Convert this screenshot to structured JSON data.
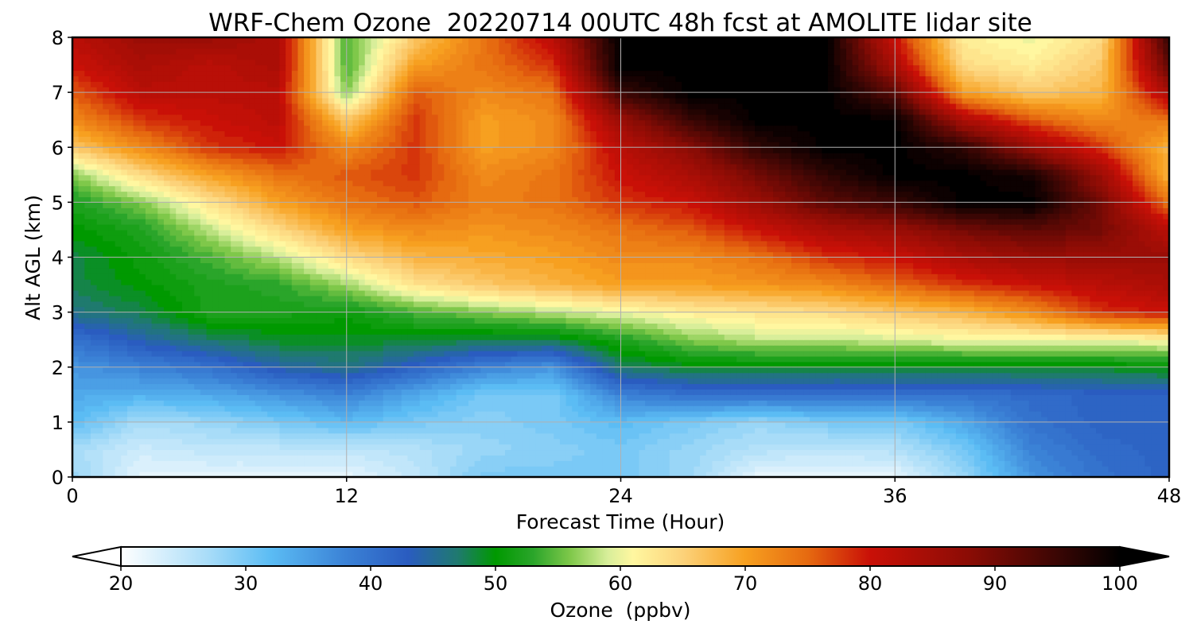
{
  "chart_data": {
    "type": "heatmap",
    "subtype": "filled-contour",
    "title": "WRF-Chem Ozone  20220714 00UTC 48h fcst at AMOLITE lidar site",
    "xlabel": "Forecast Time (Hour)",
    "ylabel": "Alt AGL (km)",
    "xlim": [
      0,
      48
    ],
    "ylim": [
      0,
      8
    ],
    "xticks": [
      0,
      12,
      24,
      36,
      48
    ],
    "yticks": [
      0,
      1,
      2,
      3,
      4,
      5,
      6,
      7,
      8
    ],
    "grid": true,
    "x": [
      0,
      3,
      6,
      9,
      12,
      15,
      18,
      21,
      24,
      27,
      30,
      33,
      36,
      39,
      42,
      45,
      48
    ],
    "y": [
      0,
      0.5,
      1,
      1.5,
      2,
      2.5,
      3,
      3.5,
      4,
      4.5,
      5,
      5.5,
      6,
      6.5,
      7,
      7.5,
      8
    ],
    "z": [
      [
        28,
        22,
        22,
        22,
        22,
        25,
        30,
        30,
        30,
        28,
        22,
        22,
        22,
        28,
        36,
        40,
        42
      ],
      [
        27,
        24,
        25,
        25,
        25,
        26,
        28,
        29,
        30,
        28,
        26,
        25,
        26,
        30,
        38,
        41,
        42
      ],
      [
        32,
        27,
        28,
        30,
        32,
        30,
        29,
        30,
        32,
        30,
        28,
        30,
        30,
        34,
        40,
        42,
        42
      ],
      [
        34,
        33,
        34,
        36,
        38,
        34,
        30,
        30,
        38,
        40,
        40,
        40,
        40,
        40,
        41,
        42,
        42
      ],
      [
        36,
        38,
        40,
        44,
        46,
        42,
        38,
        36,
        47,
        49,
        49,
        49,
        49,
        49,
        49,
        49,
        50
      ],
      [
        40,
        44,
        47,
        49,
        49,
        49,
        48,
        48,
        52,
        56,
        58,
        58,
        59,
        60,
        60,
        60,
        61
      ],
      [
        46,
        48,
        52,
        52,
        51,
        54,
        56,
        58,
        60,
        62,
        63,
        64,
        66,
        68,
        72,
        78,
        80
      ],
      [
        48,
        50,
        52,
        53,
        57,
        63,
        66,
        68,
        70,
        70,
        71,
        72,
        75,
        78,
        80,
        82,
        84
      ],
      [
        48,
        51,
        54,
        58,
        64,
        68,
        69,
        70,
        72,
        72,
        74,
        78,
        80,
        84,
        86,
        86,
        86
      ],
      [
        50,
        52,
        58,
        64,
        70,
        72,
        71,
        72,
        74,
        76,
        80,
        84,
        86,
        90,
        92,
        90,
        82
      ],
      [
        52,
        56,
        63,
        70,
        74,
        76,
        73,
        74,
        78,
        80,
        86,
        92,
        95,
        100,
        100,
        90,
        74
      ],
      [
        56,
        64,
        70,
        74,
        76,
        78,
        72,
        74,
        80,
        84,
        90,
        96,
        100,
        100,
        98,
        86,
        68
      ],
      [
        66,
        72,
        78,
        80,
        72,
        78,
        70,
        72,
        82,
        88,
        96,
        100,
        100,
        96,
        86,
        78,
        68
      ],
      [
        72,
        78,
        80,
        82,
        66,
        78,
        70,
        72,
        86,
        95,
        100,
        100,
        100,
        84,
        76,
        72,
        74
      ],
      [
        76,
        82,
        82,
        82,
        56,
        76,
        72,
        74,
        95,
        100,
        100,
        100,
        92,
        70,
        66,
        68,
        84
      ],
      [
        80,
        84,
        82,
        84,
        54,
        70,
        74,
        78,
        100,
        100,
        100,
        100,
        84,
        64,
        62,
        66,
        92
      ],
      [
        82,
        86,
        86,
        84,
        54,
        66,
        74,
        82,
        100,
        100,
        100,
        100,
        80,
        62,
        60,
        64,
        96
      ]
    ],
    "colorbar": {
      "label": "Ozone  (ppbv)",
      "min": 20,
      "max": 100,
      "ticks": [
        20,
        30,
        40,
        50,
        60,
        70,
        80,
        90,
        100
      ],
      "extend": "both",
      "orientation": "horizontal",
      "stops": [
        [
          20,
          "#ffffff"
        ],
        [
          27,
          "#a8dcf8"
        ],
        [
          32,
          "#5bbcf4"
        ],
        [
          38,
          "#3b82d6"
        ],
        [
          43,
          "#2a5cc0"
        ],
        [
          47,
          "#1f7a6e"
        ],
        [
          50,
          "#009900"
        ],
        [
          53,
          "#2aa52a"
        ],
        [
          56,
          "#7fc84a"
        ],
        [
          59,
          "#d8ee9a"
        ],
        [
          61,
          "#fff7a0"
        ],
        [
          65,
          "#fcd27a"
        ],
        [
          70,
          "#f7a020"
        ],
        [
          75,
          "#e66a10"
        ],
        [
          80,
          "#c91007"
        ],
        [
          88,
          "#8a0c05"
        ],
        [
          95,
          "#3a0604"
        ],
        [
          100,
          "#000000"
        ]
      ],
      "under_color": "#ffffff",
      "over_color": "#000000"
    }
  }
}
